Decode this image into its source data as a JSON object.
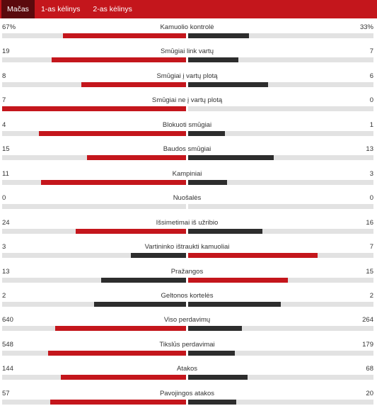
{
  "tabs": [
    {
      "label": "Mačas",
      "active": true
    },
    {
      "label": "1-as kėlinys",
      "active": false
    },
    {
      "label": "2-as kėlinys",
      "active": false
    }
  ],
  "colors": {
    "home": "#c4161c",
    "away": "#2d2d2d",
    "track": "#e2e2e2",
    "header": "#c4161c"
  },
  "stats": [
    {
      "label": "Kamuolio kontrolė",
      "home": "67%",
      "away": "33%",
      "home_fill": 0.67,
      "away_fill": 0.33,
      "home_color": "red",
      "away_color": "dark"
    },
    {
      "label": "Smūgiai link vartų",
      "home": "19",
      "away": "7",
      "home_fill": 0.73,
      "away_fill": 0.27,
      "home_color": "red",
      "away_color": "dark"
    },
    {
      "label": "Smūgiai į vartų plotą",
      "home": "8",
      "away": "6",
      "home_fill": 0.57,
      "away_fill": 0.43,
      "home_color": "red",
      "away_color": "dark"
    },
    {
      "label": "Smūgiai ne į vartų plotą",
      "home": "7",
      "away": "0",
      "home_fill": 1.0,
      "away_fill": 0.0,
      "home_color": "red",
      "away_color": "dark"
    },
    {
      "label": "Blokuoti smūgiai",
      "home": "4",
      "away": "1",
      "home_fill": 0.8,
      "away_fill": 0.2,
      "home_color": "red",
      "away_color": "dark"
    },
    {
      "label": "Baudos smūgiai",
      "home": "15",
      "away": "13",
      "home_fill": 0.54,
      "away_fill": 0.46,
      "home_color": "red",
      "away_color": "dark"
    },
    {
      "label": "Kampiniai",
      "home": "11",
      "away": "3",
      "home_fill": 0.79,
      "away_fill": 0.21,
      "home_color": "red",
      "away_color": "dark"
    },
    {
      "label": "Nuošalės",
      "home": "0",
      "away": "0",
      "home_fill": 0.0,
      "away_fill": 0.0,
      "home_color": "red",
      "away_color": "dark"
    },
    {
      "label": "Išsimetimai iš užribio",
      "home": "24",
      "away": "16",
      "home_fill": 0.6,
      "away_fill": 0.4,
      "home_color": "red",
      "away_color": "dark"
    },
    {
      "label": "Vartininko ištraukti kamuoliai",
      "home": "3",
      "away": "7",
      "home_fill": 0.3,
      "away_fill": 0.7,
      "home_color": "dark",
      "away_color": "red"
    },
    {
      "label": "Pražangos",
      "home": "13",
      "away": "15",
      "home_fill": 0.46,
      "away_fill": 0.54,
      "home_color": "dark",
      "away_color": "red"
    },
    {
      "label": "Geltonos kortelės",
      "home": "2",
      "away": "2",
      "home_fill": 0.5,
      "away_fill": 0.5,
      "home_color": "dark",
      "away_color": "dark"
    },
    {
      "label": "Viso perdavimų",
      "home": "640",
      "away": "264",
      "home_fill": 0.71,
      "away_fill": 0.29,
      "home_color": "red",
      "away_color": "dark"
    },
    {
      "label": "Tikslūs perdavimai",
      "home": "548",
      "away": "179",
      "home_fill": 0.75,
      "away_fill": 0.25,
      "home_color": "red",
      "away_color": "dark"
    },
    {
      "label": "Atakos",
      "home": "144",
      "away": "68",
      "home_fill": 0.68,
      "away_fill": 0.32,
      "home_color": "red",
      "away_color": "dark"
    },
    {
      "label": "Pavojingos atakos",
      "home": "57",
      "away": "20",
      "home_fill": 0.74,
      "away_fill": 0.26,
      "home_color": "red",
      "away_color": "dark"
    }
  ]
}
